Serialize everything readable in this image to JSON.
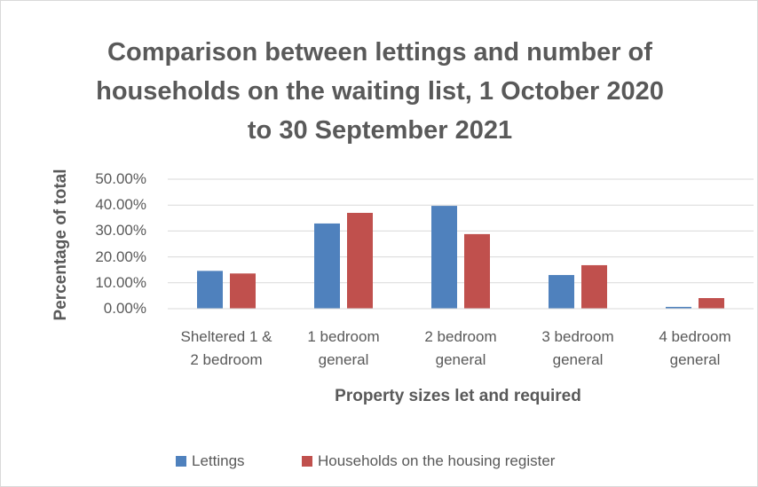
{
  "chart_data": {
    "type": "bar",
    "title": "Comparison between lettings and number of households on the waiting list, 1 October 2020 to 30 September 2021",
    "x_label": "Property sizes let and required",
    "y_label": "Percentage of total",
    "categories": [
      "Sheltered 1 & 2 bedroom",
      "1 bedroom general",
      "2 bedroom general",
      "3 bedroom general",
      "4 bedroom general"
    ],
    "series": [
      {
        "name": "Lettings",
        "color": "#4f81bd",
        "values": [
          14.6,
          32.9,
          39.7,
          13.0,
          0.7
        ]
      },
      {
        "name": "Households on the housing register",
        "color": "#c0504d",
        "values": [
          13.6,
          37.0,
          28.8,
          16.8,
          4.1
        ]
      }
    ],
    "ylim": [
      0,
      50
    ],
    "yticks": [
      {
        "value": 0,
        "label": "0.00%"
      },
      {
        "value": 10,
        "label": "10.00%"
      },
      {
        "value": 20,
        "label": "20.00%"
      },
      {
        "value": 30,
        "label": "30.00%"
      },
      {
        "value": 40,
        "label": "40.00%"
      },
      {
        "value": 50,
        "label": "50.00%"
      }
    ],
    "grid": true,
    "legend": "bottom"
  }
}
